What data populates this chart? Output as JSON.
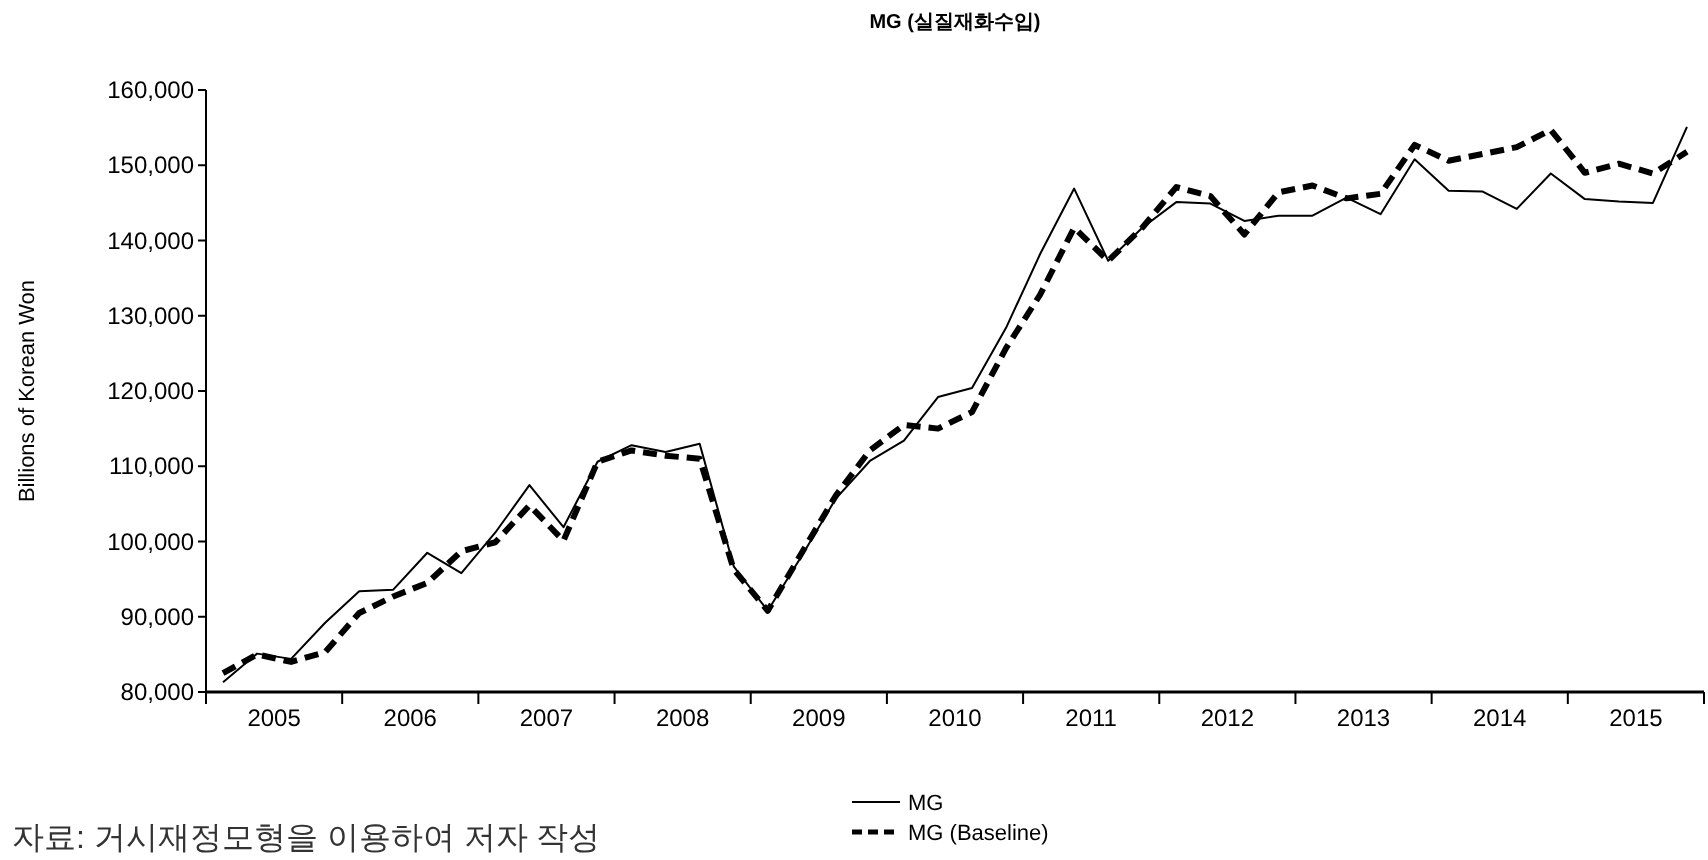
{
  "chart_data": {
    "type": "line",
    "title": "MG (실질재화수입)",
    "ylabel": "Billions of Korean Won",
    "annotations": [
      "자료: 거시재정모형을 이용하여 저자 작성"
    ],
    "x": [
      2005.125,
      2005.375,
      2005.625,
      2005.875,
      2006.125,
      2006.375,
      2006.625,
      2006.875,
      2007.125,
      2007.375,
      2007.625,
      2007.875,
      2008.125,
      2008.375,
      2008.625,
      2008.875,
      2009.125,
      2009.375,
      2009.625,
      2009.875,
      2010.125,
      2010.375,
      2010.625,
      2010.875,
      2011.125,
      2011.375,
      2011.625,
      2011.875,
      2012.125,
      2012.375,
      2012.625,
      2012.875,
      2013.125,
      2013.375,
      2013.625,
      2013.875,
      2014.125,
      2014.375,
      2014.625,
      2014.875,
      2015.125,
      2015.375,
      2015.625,
      2015.875
    ],
    "series": [
      {
        "name": "MG",
        "color": "#000000",
        "line_style": "solid",
        "values": [
          81300,
          85100,
          84400,
          89200,
          93400,
          93600,
          98500,
          95800,
          101200,
          107500,
          101900,
          110600,
          112800,
          111900,
          113000,
          96700,
          90800,
          98100,
          105700,
          110700,
          113400,
          119200,
          120400,
          128400,
          138200,
          146900,
          137300,
          141700,
          145100,
          144900,
          142600,
          143300,
          143300,
          145700,
          143500,
          150800,
          146600,
          146500,
          144200,
          148900,
          145500,
          145200,
          145000,
          155100
        ]
      },
      {
        "name": "MG (Baseline)",
        "color": "#000000",
        "line_style": "dashed",
        "values": [
          82500,
          85000,
          84000,
          85300,
          90500,
          92700,
          94500,
          98700,
          99900,
          104800,
          100100,
          110600,
          112100,
          111400,
          111000,
          96300,
          90800,
          98500,
          106100,
          112100,
          115500,
          115000,
          117200,
          125700,
          132800,
          141700,
          137300,
          141700,
          147100,
          145900,
          140800,
          146400,
          147300,
          145600,
          146200,
          152700,
          150600,
          151500,
          152400,
          154700,
          149000,
          150200,
          148900,
          151800
        ]
      }
    ],
    "xlim": [
      2005,
      2016
    ],
    "xticks": [
      {
        "value": 2005,
        "label": null
      },
      {
        "value": 2005.5,
        "label": "2005"
      },
      {
        "value": 2006,
        "label": null
      },
      {
        "value": 2006.5,
        "label": "2006"
      },
      {
        "value": 2007,
        "label": null
      },
      {
        "value": 2007.5,
        "label": "2007"
      },
      {
        "value": 2008,
        "label": null
      },
      {
        "value": 2008.5,
        "label": "2008"
      },
      {
        "value": 2009,
        "label": null
      },
      {
        "value": 2009.5,
        "label": "2009"
      },
      {
        "value": 2010,
        "label": null
      },
      {
        "value": 2010.5,
        "label": "2010"
      },
      {
        "value": 2011,
        "label": null
      },
      {
        "value": 2011.5,
        "label": "2011"
      },
      {
        "value": 2012,
        "label": null
      },
      {
        "value": 2012.5,
        "label": "2012"
      },
      {
        "value": 2013,
        "label": null
      },
      {
        "value": 2013.5,
        "label": "2013"
      },
      {
        "value": 2014,
        "label": null
      },
      {
        "value": 2014.5,
        "label": "2014"
      },
      {
        "value": 2015,
        "label": null
      },
      {
        "value": 2015.5,
        "label": "2015"
      },
      {
        "value": 2016,
        "label": null
      }
    ],
    "ylim": [
      80000,
      160000
    ],
    "yticks": [
      {
        "value": 80000,
        "label": "80,000"
      },
      {
        "value": 90000,
        "label": "90,000"
      },
      {
        "value": 100000,
        "label": "100,000"
      },
      {
        "value": 110000,
        "label": "110,000"
      },
      {
        "value": 120000,
        "label": "120,000"
      },
      {
        "value": 130000,
        "label": "130,000"
      },
      {
        "value": 140000,
        "label": "140,000"
      },
      {
        "value": 150000,
        "label": "150,000"
      },
      {
        "value": 160000,
        "label": "160,000"
      }
    ],
    "legend": "bottom",
    "marker": "none",
    "grid": false
  }
}
